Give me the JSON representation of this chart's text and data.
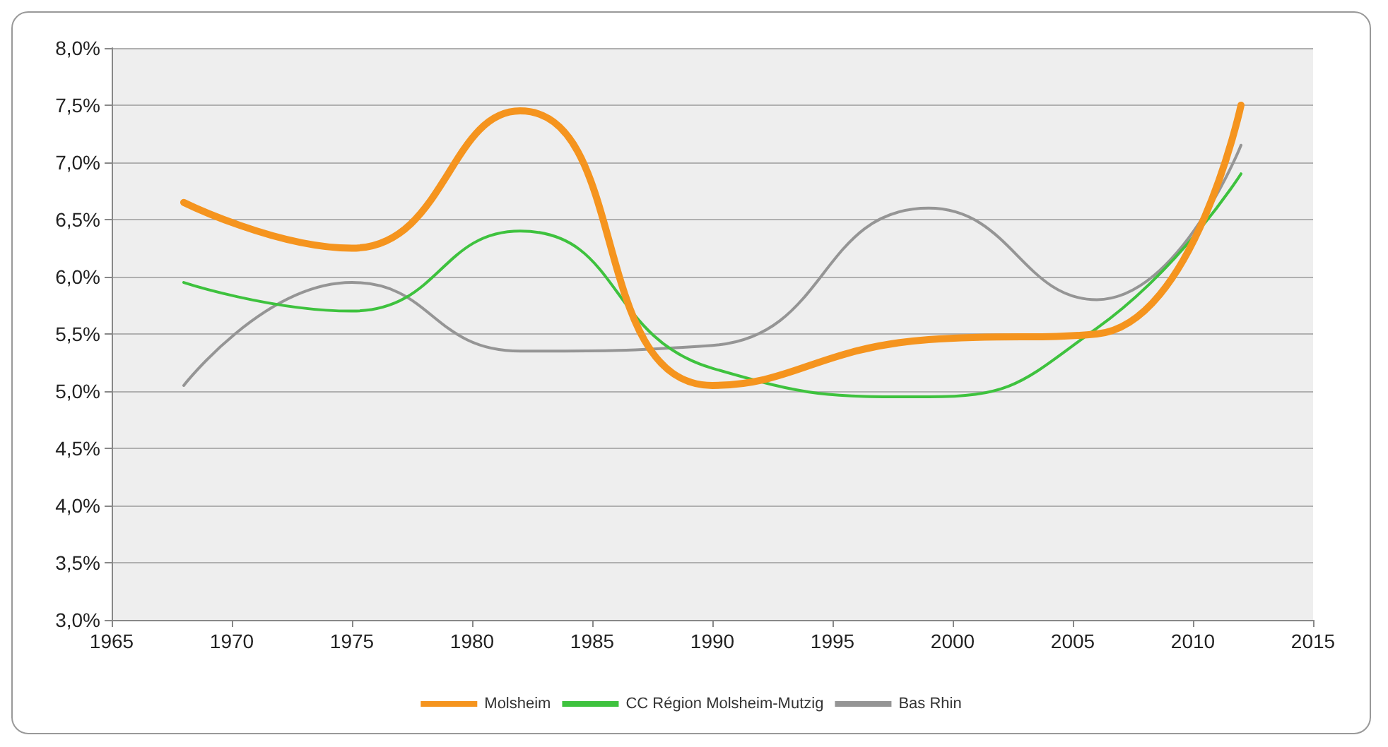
{
  "chart_data": {
    "type": "line",
    "x": [
      1968,
      1975,
      1982,
      1990,
      1999,
      2006,
      2012
    ],
    "series": [
      {
        "name": "Molsheim",
        "color": "#f5941e",
        "values": [
          6.65,
          6.25,
          7.45,
          5.05,
          5.45,
          5.5,
          7.5
        ]
      },
      {
        "name": "CC Région Molsheim-Mutzig",
        "color": "#3ec23e",
        "values": [
          5.95,
          5.7,
          6.4,
          5.2,
          4.95,
          5.55,
          6.9
        ]
      },
      {
        "name": "Bas Rhin",
        "color": "#959595",
        "values": [
          5.05,
          5.95,
          5.35,
          5.4,
          6.6,
          5.8,
          7.15
        ]
      }
    ],
    "xlim": [
      1965,
      2015
    ],
    "xticks": [
      1965,
      1970,
      1975,
      1980,
      1985,
      1990,
      1995,
      2000,
      2005,
      2010,
      2015
    ],
    "ylim": [
      3,
      8
    ],
    "yticks": [
      {
        "value": 3,
        "label": "3,0%"
      },
      {
        "value": 3.5,
        "label": "3,5%"
      },
      {
        "value": 4,
        "label": "4,0%"
      },
      {
        "value": 4.5,
        "label": "4,5%"
      },
      {
        "value": 5,
        "label": "5,0%"
      },
      {
        "value": 5.5,
        "label": "5,5%"
      },
      {
        "value": 6,
        "label": "6,0%"
      },
      {
        "value": 6.5,
        "label": "6,5%"
      },
      {
        "value": 7,
        "label": "7,0%"
      },
      {
        "value": 7.5,
        "label": "7,5%"
      },
      {
        "value": 8,
        "label": "8,0%"
      }
    ],
    "grid": "y",
    "legend": "bottom",
    "marker": "none",
    "line_style": "solid"
  }
}
